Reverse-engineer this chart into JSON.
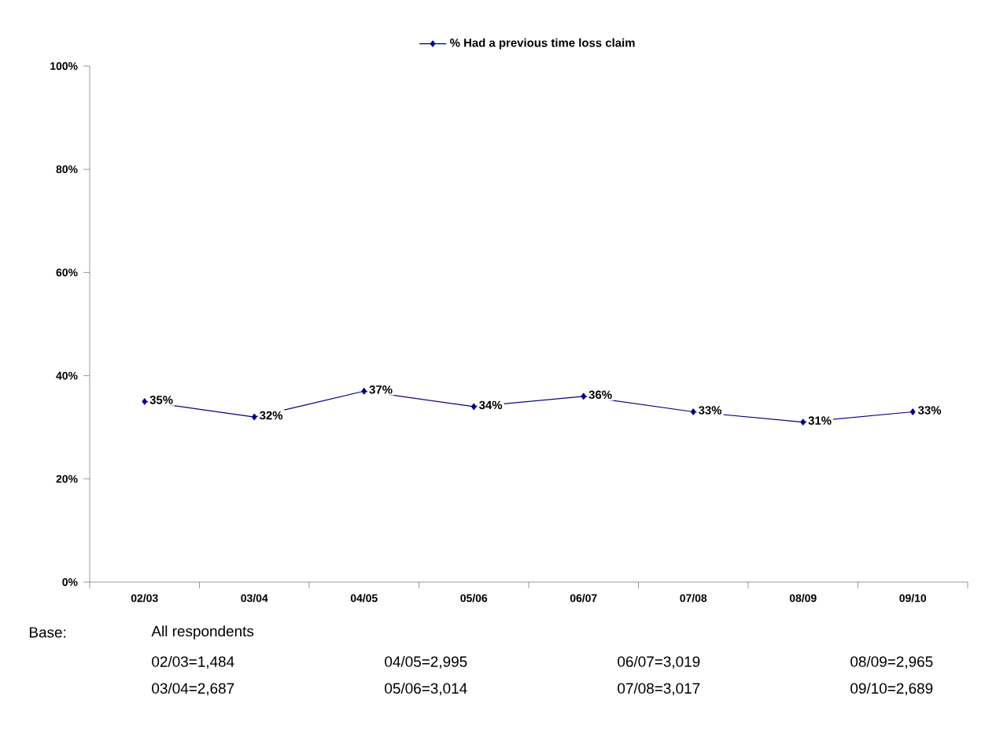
{
  "chart_data": {
    "type": "line",
    "categories": [
      "02/03",
      "03/04",
      "04/05",
      "05/06",
      "06/07",
      "07/08",
      "08/09",
      "09/10"
    ],
    "series": [
      {
        "name": "% Had a previous time loss claim",
        "color": "#000080",
        "values": [
          35,
          32,
          37,
          34,
          36,
          33,
          31,
          33
        ],
        "value_labels": [
          "35%",
          "32%",
          "37%",
          "34%",
          "36%",
          "33%",
          "31%",
          "33%"
        ]
      }
    ],
    "ylim": [
      0,
      100
    ],
    "yticks": [
      {
        "value": 0,
        "label": "0%"
      },
      {
        "value": 20,
        "label": "20%"
      },
      {
        "value": 40,
        "label": "40%"
      },
      {
        "value": 60,
        "label": "60%"
      },
      {
        "value": 80,
        "label": "80%"
      },
      {
        "value": 100,
        "label": "100%"
      }
    ],
    "legend": "top",
    "marker": "diamond",
    "line_style": "solid",
    "grid": false,
    "annotations": [
      "Base:",
      "All respondents",
      "02/03=1,484",
      "03/04=2,687",
      "04/05=2,995",
      "05/06=3,014",
      "06/07=3,019",
      "07/08=3,017",
      "08/09=2,965",
      "09/10=2,689"
    ]
  }
}
